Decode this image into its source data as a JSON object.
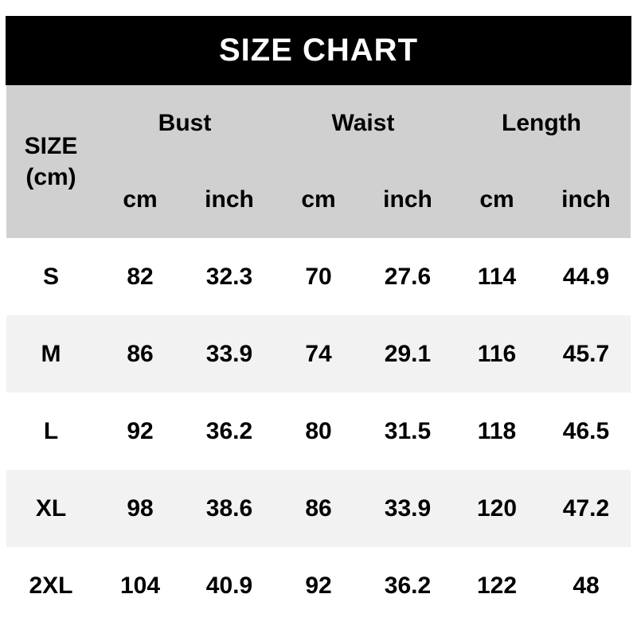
{
  "title": "SIZE CHART",
  "table": {
    "size_header_line1": "SIZE",
    "size_header_line2": "(cm)",
    "groups": [
      {
        "label": "Bust"
      },
      {
        "label": "Waist"
      },
      {
        "label": "Length"
      }
    ],
    "unit_headers": [
      "cm",
      "inch",
      "cm",
      "inch",
      "cm",
      "inch"
    ],
    "rows": [
      {
        "size": "S",
        "values": [
          "82",
          "32.3",
          "70",
          "27.6",
          "114",
          "44.9"
        ]
      },
      {
        "size": "M",
        "values": [
          "86",
          "33.9",
          "74",
          "29.1",
          "116",
          "45.7"
        ]
      },
      {
        "size": "L",
        "values": [
          "92",
          "36.2",
          "80",
          "31.5",
          "118",
          "46.5"
        ]
      },
      {
        "size": "XL",
        "values": [
          "98",
          "38.6",
          "86",
          "33.9",
          "120",
          "47.2"
        ]
      },
      {
        "size": "2XL",
        "values": [
          "104",
          "40.9",
          "92",
          "36.2",
          "122",
          "48"
        ]
      }
    ]
  },
  "colors": {
    "title_bar_bg": "#000000",
    "title_bar_text": "#ffffff",
    "table_header_bg": "#d0d0d0",
    "row_bg": "#ffffff",
    "row_alt_bg": "#f2f2f2",
    "text": "#000000"
  }
}
